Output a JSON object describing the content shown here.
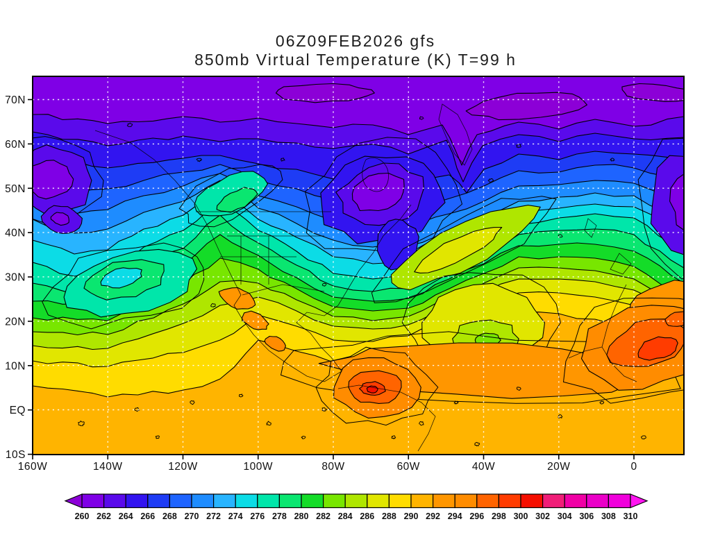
{
  "title": {
    "line1": "06Z09FEB2026 gfs",
    "line2": "850mb Virtual Temperature (K) T=99 h"
  },
  "axes": {
    "lat_labels": [
      "70N",
      "60N",
      "50N",
      "40N",
      "30N",
      "20N",
      "10N",
      "EQ",
      "10S"
    ],
    "lon_labels": [
      "160W",
      "140W",
      "120W",
      "100W",
      "80W",
      "60W",
      "40W",
      "20W",
      "0"
    ]
  },
  "colorbar": {
    "tick_labels": [
      "260",
      "262",
      "264",
      "266",
      "268",
      "270",
      "272",
      "274",
      "276",
      "278",
      "280",
      "282",
      "284",
      "286",
      "288",
      "290",
      "292",
      "294",
      "296",
      "298",
      "300",
      "302",
      "304",
      "306",
      "308",
      "310"
    ],
    "units": "K"
  },
  "palette": {
    "below_260": "#8C00D7",
    "260": "#7F00E6",
    "262": "#5A0AEB",
    "264": "#3214F0",
    "266": "#1E3CF5",
    "268": "#1E64FF",
    "270": "#1E8CFF",
    "272": "#28B4FF",
    "274": "#0CDCE6",
    "276": "#00E6AA",
    "278": "#0AE670",
    "280": "#14DC28",
    "282": "#78E600",
    "284": "#AFE600",
    "286": "#E1E600",
    "288": "#FFDC00",
    "290": "#FFB400",
    "292": "#FF9600",
    "294": "#FF8C00",
    "296": "#FF6400",
    "298": "#FF3C00",
    "300": "#F50F00",
    "302": "#F01E78",
    "304": "#F000A5",
    "306": "#EB00C8",
    "308": "#F000DC",
    "above_310": "#FF14F0",
    "contour": "#000000",
    "grid": "#FFFFFF"
  },
  "chart_data": {
    "type": "heatmap",
    "title": "06Z09FEB2026 gfs",
    "subtitle": "850mb Virtual Temperature (K) T=99 h",
    "variable": "850mb Virtual Temperature",
    "units": "K",
    "forecast_hour_label": "T=99 h",
    "run_label": "06Z09FEB2026",
    "model_label": "gfs",
    "levels_K": [
      260,
      262,
      264,
      266,
      268,
      270,
      272,
      274,
      276,
      278,
      280,
      282,
      284,
      286,
      288,
      290,
      292,
      294,
      296,
      298,
      300,
      302,
      304,
      306,
      308,
      310
    ],
    "contour_interval_K": 2,
    "x_tick_labels": [
      "160W",
      "140W",
      "120W",
      "100W",
      "80W",
      "60W",
      "40W",
      "20W",
      "0"
    ],
    "y_tick_labels": [
      "70N",
      "60N",
      "50N",
      "40N",
      "30N",
      "20N",
      "10N",
      "EQ",
      "10S"
    ],
    "lat_range": [
      "10S",
      "75N"
    ],
    "lon_range": [
      "160W",
      "13E"
    ],
    "grid_on": true,
    "legend_position": "bottom colorbar with out-of-range arrows",
    "grid_estimate": {
      "lons": [
        "160W",
        "140W",
        "120W",
        "100W",
        "80W",
        "60W",
        "40W",
        "20W",
        "0"
      ],
      "lats": [
        "70N",
        "60N",
        "50N",
        "40N",
        "30N",
        "20N",
        "10N",
        "EQ",
        "10S"
      ],
      "values_K": [
        [
          262,
          262,
          261,
          261,
          261,
          260,
          261,
          261,
          261
        ],
        [
          266,
          265,
          266,
          264,
          263,
          263,
          262,
          267,
          267
        ],
        [
          267,
          269,
          272,
          274,
          261,
          266,
          270,
          272,
          273
        ],
        [
          264,
          268,
          274,
          277,
          272,
          274,
          280,
          277,
          276
        ],
        [
          281,
          278,
          282,
          284,
          286,
          287,
          285,
          287,
          288
        ],
        [
          289,
          289,
          290,
          293,
          291,
          291,
          286,
          291,
          292
        ],
        [
          291,
          291,
          291,
          292,
          293,
          294,
          293,
          293,
          297
        ],
        [
          291,
          291,
          291,
          292,
          297,
          294,
          292,
          292,
          293
        ],
        [
          291,
          291,
          291,
          291,
          292,
          293,
          292,
          292,
          292
        ]
      ]
    },
    "features": [
      "Arctic cap below 262 K north of ~62N",
      "Cold core ~260 K near Hudson Bay (85W, 50N)",
      "Cold blob ~262 K in NE Pacific (150W, 43N)",
      "Warm ridge (274-280 K) over western North America to 57N",
      "Warm tongue (284-288 K) tilted SW-NE across the central Atlantic",
      "Cool pool (276-280 K) in East Pacific near 30N 135W",
      "Tropical belt 290-296 K with hot cores ~298-300 K over northern South America and West Africa"
    ]
  }
}
